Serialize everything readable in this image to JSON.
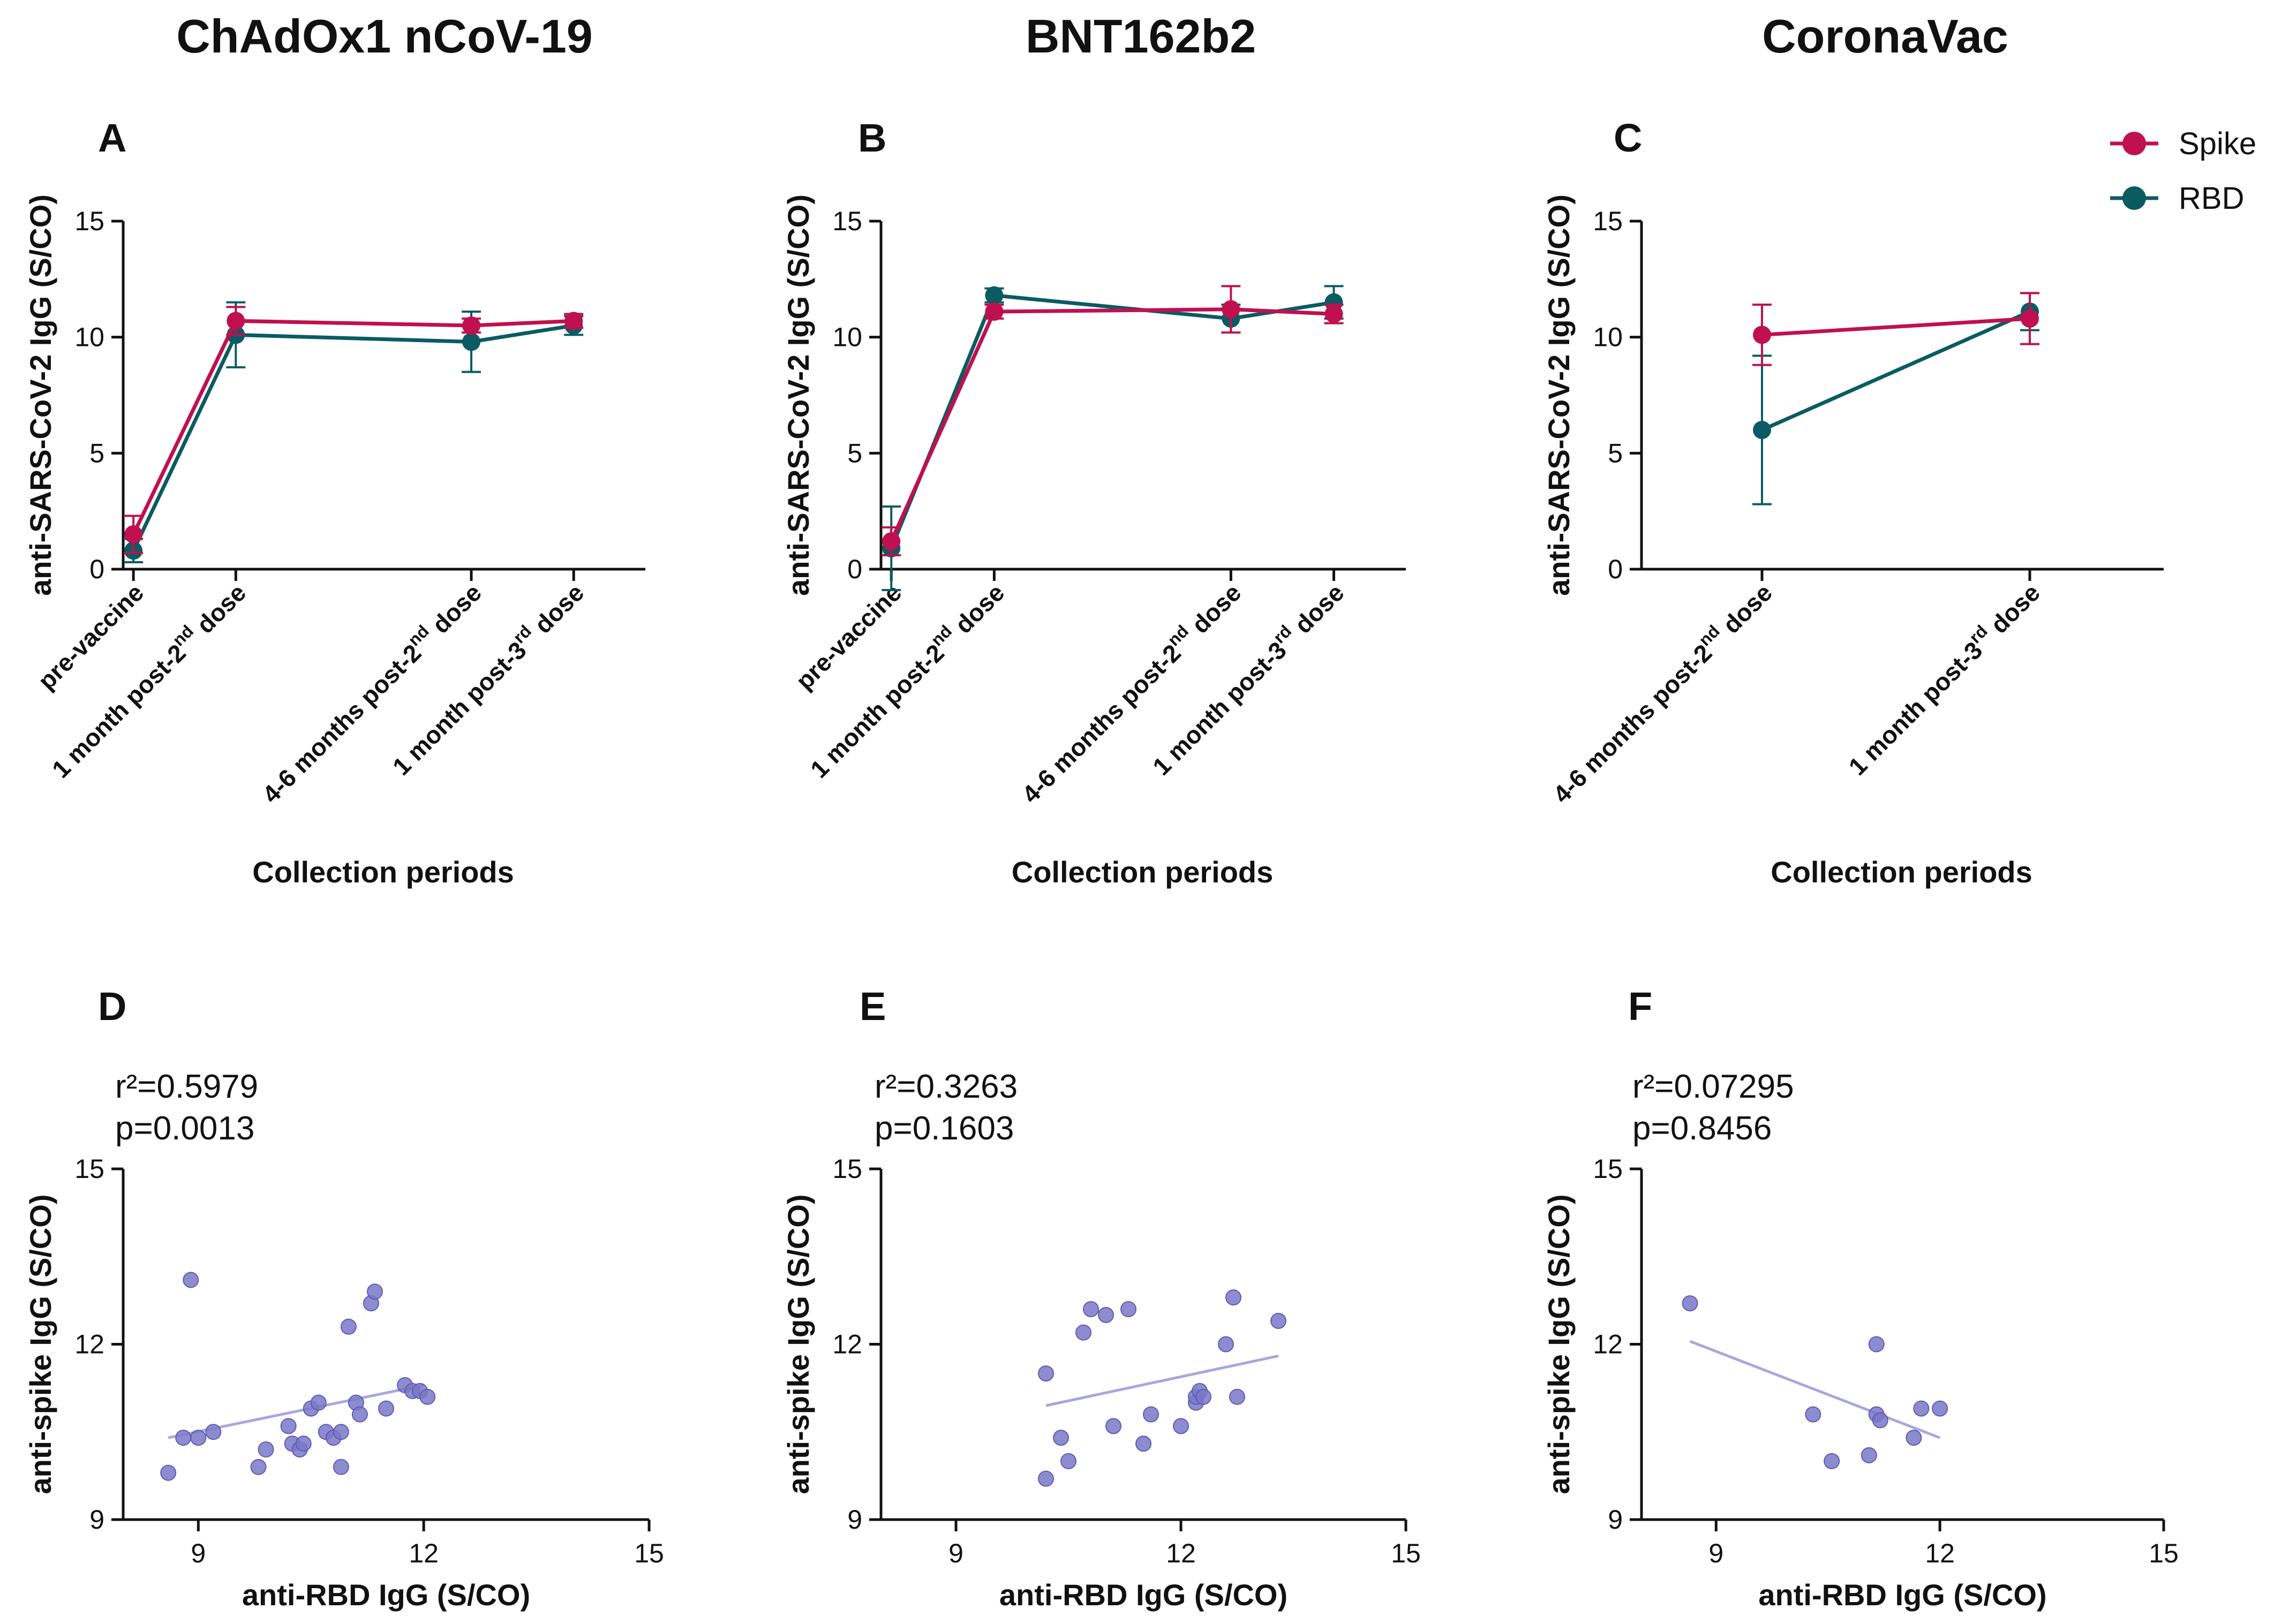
{
  "colors": {
    "spike": "#C0104F",
    "rbd": "#0B5B63",
    "scatter": "#7A78C8",
    "fit": "#A7A6DE"
  },
  "column_titles": [
    "ChAdOx1 nCoV-19",
    "BNT162b2",
    "CoronaVac"
  ],
  "legend": {
    "spike": "Spike",
    "rbd": "RBD"
  },
  "chart_data": [
    {
      "id": "A",
      "type": "line",
      "letter": "A",
      "ylabel": "anti-SARS-CoV-2 IgG (S/CO)",
      "xlabel": "Collection periods",
      "ylim": [
        0,
        15
      ],
      "yticks": [
        0,
        5,
        10,
        15
      ],
      "x": [
        0,
        1,
        3.3,
        4.3
      ],
      "xlim": [
        -0.1,
        5
      ],
      "categories": [
        {
          "text": "pre-vaccine",
          "sup": "",
          "tail": ""
        },
        {
          "text": "1 month post-2",
          "sup": "nd",
          "tail": "  dose"
        },
        {
          "text": "4-6 months post-2",
          "sup": "nd",
          "tail": "  dose"
        },
        {
          "text": "1 month post-3",
          "sup": "rd",
          "tail": "  dose"
        }
      ],
      "series": [
        {
          "name": "Spike",
          "values": [
            1.5,
            10.7,
            10.5,
            10.7
          ],
          "err": [
            0.8,
            0.6,
            0.3,
            0.3
          ]
        },
        {
          "name": "RBD",
          "values": [
            0.8,
            10.1,
            9.8,
            10.5
          ],
          "err": [
            0.5,
            1.4,
            1.3,
            0.4
          ]
        }
      ]
    },
    {
      "id": "B",
      "type": "line",
      "letter": "B",
      "ylabel": "anti-SARS-CoV-2 IgG (S/CO)",
      "xlabel": "Collection periods",
      "ylim": [
        0,
        15
      ],
      "yticks": [
        0,
        5,
        10,
        15
      ],
      "x": [
        0,
        1,
        3.3,
        4.3
      ],
      "xlim": [
        -0.1,
        5
      ],
      "categories": [
        {
          "text": "pre-vaccine",
          "sup": "",
          "tail": ""
        },
        {
          "text": "1 month post-2",
          "sup": "nd",
          "tail": "  dose"
        },
        {
          "text": "4-6 months post-2",
          "sup": "nd",
          "tail": "  dose"
        },
        {
          "text": "1 month post-3",
          "sup": "rd",
          "tail": "  dose"
        }
      ],
      "series": [
        {
          "name": "Spike",
          "values": [
            1.2,
            11.1,
            11.2,
            11.0
          ],
          "err": [
            0.6,
            0.3,
            1.0,
            0.4
          ]
        },
        {
          "name": "RBD",
          "values": [
            0.9,
            11.8,
            10.8,
            11.5
          ],
          "err": [
            1.8,
            0.3,
            0.6,
            0.7
          ]
        }
      ]
    },
    {
      "id": "C",
      "type": "line",
      "letter": "C",
      "ylabel": "anti-SARS-CoV-2 IgG (S/CO)",
      "xlabel": "Collection periods",
      "ylim": [
        0,
        15
      ],
      "yticks": [
        0,
        5,
        10,
        15
      ],
      "x": [
        0,
        1
      ],
      "xlim": [
        -0.45,
        1.5
      ],
      "categories": [
        {
          "text": "4-6 months post-2",
          "sup": "nd",
          "tail": "  dose"
        },
        {
          "text": "1 month post-3",
          "sup": "rd",
          "tail": "  dose"
        }
      ],
      "series": [
        {
          "name": "Spike",
          "values": [
            10.1,
            10.8
          ],
          "err": [
            1.3,
            1.1
          ]
        },
        {
          "name": "RBD",
          "values": [
            6.0,
            11.1
          ],
          "err": [
            3.2,
            0.8
          ]
        }
      ]
    },
    {
      "id": "D",
      "type": "scatter",
      "letter": "D",
      "r2": "r²=0.5979",
      "p": "p=0.0013",
      "xlabel": "anti-RBD IgG (S/CO)",
      "ylabel": "anti-spike IgG (S/CO)",
      "xlim": [
        8,
        15
      ],
      "ylim": [
        9,
        15
      ],
      "xticks": [
        9,
        12,
        15
      ],
      "yticks": [
        9,
        12,
        15
      ],
      "points": [
        [
          8.6,
          9.8
        ],
        [
          8.8,
          10.4
        ],
        [
          8.9,
          13.1
        ],
        [
          9.0,
          10.4
        ],
        [
          9.2,
          10.5
        ],
        [
          9.8,
          9.9
        ],
        [
          9.9,
          10.2
        ],
        [
          10.2,
          10.6
        ],
        [
          10.25,
          10.3
        ],
        [
          10.35,
          10.2
        ],
        [
          10.4,
          10.3
        ],
        [
          10.5,
          10.9
        ],
        [
          10.6,
          11.0
        ],
        [
          10.7,
          10.5
        ],
        [
          10.8,
          10.4
        ],
        [
          10.9,
          9.9
        ],
        [
          10.9,
          10.5
        ],
        [
          11.0,
          12.3
        ],
        [
          11.1,
          11.0
        ],
        [
          11.15,
          10.8
        ],
        [
          11.3,
          12.7
        ],
        [
          11.35,
          12.9
        ],
        [
          11.5,
          10.9
        ],
        [
          11.75,
          11.3
        ],
        [
          11.85,
          11.2
        ],
        [
          11.95,
          11.2
        ],
        [
          12.05,
          11.1
        ]
      ],
      "fit": [
        [
          8.6,
          10.4
        ],
        [
          12.0,
          11.3
        ]
      ]
    },
    {
      "id": "E",
      "type": "scatter",
      "letter": "E",
      "r2": "r²=0.3263",
      "p": "p=0.1603",
      "xlabel": "anti-RBD IgG (S/CO)",
      "ylabel": "anti-spike IgG (S/CO)",
      "xlim": [
        8,
        15
      ],
      "ylim": [
        9,
        15
      ],
      "xticks": [
        9,
        12,
        15
      ],
      "yticks": [
        9,
        12,
        15
      ],
      "points": [
        [
          10.2,
          11.5
        ],
        [
          10.2,
          9.7
        ],
        [
          10.4,
          10.4
        ],
        [
          10.5,
          10.0
        ],
        [
          10.7,
          12.2
        ],
        [
          10.8,
          12.6
        ],
        [
          11.0,
          12.5
        ],
        [
          11.1,
          10.6
        ],
        [
          11.3,
          12.6
        ],
        [
          11.5,
          10.3
        ],
        [
          11.6,
          10.8
        ],
        [
          12.0,
          10.6
        ],
        [
          12.2,
          11.0
        ],
        [
          12.2,
          11.1
        ],
        [
          12.25,
          11.2
        ],
        [
          12.3,
          11.1
        ],
        [
          12.6,
          12.0
        ],
        [
          12.7,
          12.8
        ],
        [
          12.75,
          11.1
        ],
        [
          13.3,
          12.4
        ]
      ],
      "fit": [
        [
          10.2,
          10.95
        ],
        [
          13.3,
          11.8
        ]
      ]
    },
    {
      "id": "F",
      "type": "scatter",
      "letter": "F",
      "r2": "r²=0.07295",
      "p": "p=0.8456",
      "xlabel": "anti-RBD IgG (S/CO)",
      "ylabel": "anti-spike IgG (S/CO)",
      "xlim": [
        8,
        15
      ],
      "ylim": [
        9,
        15
      ],
      "xticks": [
        9,
        12,
        15
      ],
      "yticks": [
        9,
        12,
        15
      ],
      "points": [
        [
          8.65,
          12.7
        ],
        [
          10.3,
          10.8
        ],
        [
          10.55,
          10.0
        ],
        [
          11.05,
          10.1
        ],
        [
          11.15,
          12.0
        ],
        [
          11.15,
          10.8
        ],
        [
          11.2,
          10.7
        ],
        [
          11.65,
          10.4
        ],
        [
          11.75,
          10.9
        ],
        [
          12.0,
          10.9
        ]
      ],
      "fit": [
        [
          8.65,
          12.05
        ],
        [
          12.0,
          10.4
        ]
      ]
    }
  ]
}
